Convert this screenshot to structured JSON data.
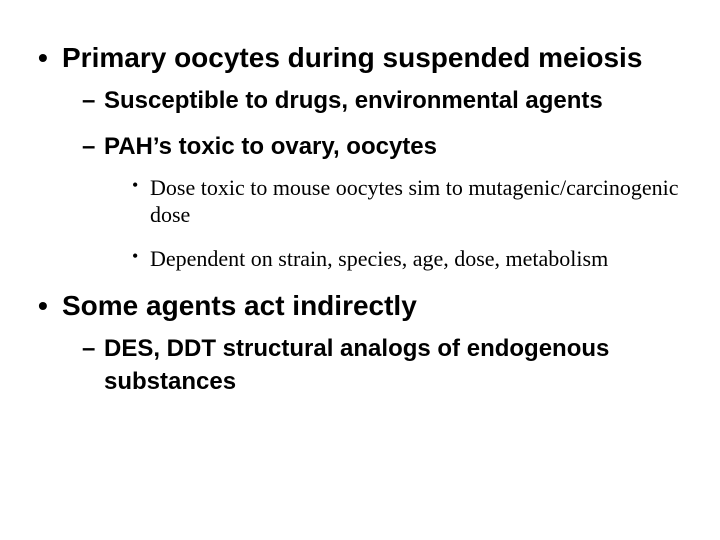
{
  "slide": {
    "background_color": "#ffffff",
    "text_color": "#000000",
    "bullets": [
      {
        "text": "Primary oocytes during suspended meiosis",
        "font_family": "Arial",
        "font_size_pt": 28,
        "font_weight": "bold",
        "children": [
          {
            "text": "Susceptible to drugs, environmental agents",
            "font_family": "Arial",
            "font_size_pt": 24,
            "font_weight": "bold"
          },
          {
            "text": "PAH’s toxic to ovary, oocytes",
            "font_family": "Arial",
            "font_size_pt": 24,
            "font_weight": "bold",
            "children": [
              {
                "text": "Dose toxic to mouse oocytes sim to mutagenic/carcinogenic dose",
                "font_family": "Times New Roman",
                "font_size_pt": 22,
                "font_weight": "normal"
              },
              {
                "text": "Dependent on strain, species, age, dose, metabolism",
                "font_family": "Times New Roman",
                "font_size_pt": 22,
                "font_weight": "normal"
              }
            ]
          }
        ]
      },
      {
        "text": "Some agents act indirectly",
        "font_family": "Arial",
        "font_size_pt": 28,
        "font_weight": "bold",
        "children": [
          {
            "text": "DES, DDT structural analogs of endogenous substances",
            "font_family": "Arial",
            "font_size_pt": 24,
            "font_weight": "bold"
          }
        ]
      }
    ]
  }
}
